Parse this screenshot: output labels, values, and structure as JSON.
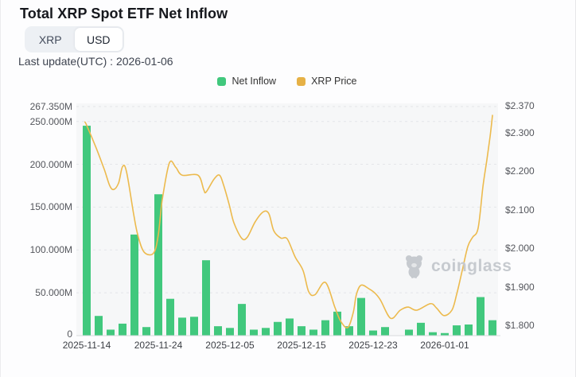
{
  "header": {
    "title": "Total XRP Spot ETF Net Inflow",
    "currency_toggle": {
      "options": [
        "XRP",
        "USD"
      ],
      "selected": "USD"
    },
    "last_update": "Last update(UTC) : 2026-01-06"
  },
  "legend": {
    "items": [
      {
        "label": "Net Inflow",
        "color": "#41c87d"
      },
      {
        "label": "XRP Price",
        "color": "#e6b146"
      }
    ]
  },
  "watermark": {
    "icon": "coinglass-bear-logo",
    "text": "coinglass"
  },
  "colors": {
    "bar": "#41c87d",
    "line": "#ecba4d",
    "plot_background": "#f6f7f8",
    "gridline": "#e4e6e9",
    "axis_line": "#d8dadd"
  },
  "chart_data": {
    "type": "bar+line",
    "title": "Total XRP Spot ETF Net Inflow",
    "legend_position": "top-center",
    "grid": "horizontal-dashed",
    "left_axis": {
      "title": "Net Inflow (USD)",
      "max": 267.35,
      "ticks": [
        {
          "value": 267.35,
          "label": "267.350M"
        },
        {
          "value": 250,
          "label": "250.000M"
        },
        {
          "value": 200,
          "label": "200.000M"
        },
        {
          "value": 150,
          "label": "150.000M"
        },
        {
          "value": 100,
          "label": "100.000M"
        },
        {
          "value": 50,
          "label": "50.000M"
        },
        {
          "value": 0,
          "label": "0"
        }
      ]
    },
    "right_axis": {
      "title": "XRP Price (USD)",
      "range": [
        1.774,
        2.37
      ],
      "ticks": [
        {
          "value": 2.37,
          "label": "$2.370"
        },
        {
          "value": 2.3,
          "label": "$2.300"
        },
        {
          "value": 2.2,
          "label": "$2.200"
        },
        {
          "value": 2.1,
          "label": "$2.100"
        },
        {
          "value": 2.0,
          "label": "$2.000"
        },
        {
          "value": 1.9,
          "label": "$1.900"
        },
        {
          "value": 1.8,
          "label": "$1.800"
        }
      ]
    },
    "x_ticks": [
      {
        "bar_index": 1,
        "label": "2025-11-14"
      },
      {
        "bar_index": 7,
        "label": "2025-11-24"
      },
      {
        "bar_index": 13,
        "label": "2025-12-05"
      },
      {
        "bar_index": 19,
        "label": "2025-12-15"
      },
      {
        "bar_index": 25,
        "label": "2025-12-23"
      },
      {
        "bar_index": 31,
        "label": "2026-01-01"
      }
    ],
    "bar_series": {
      "name": "Net Inflow",
      "unit": "millions USD",
      "values": [
        245,
        23,
        7,
        14,
        118,
        10,
        165,
        43,
        21,
        22,
        88,
        11,
        9,
        37,
        7,
        9,
        16,
        20,
        11,
        7,
        18,
        28,
        11,
        44,
        6,
        10,
        0,
        7,
        15,
        4,
        3,
        12,
        13,
        45,
        18
      ]
    },
    "line_series": {
      "name": "XRP Price",
      "unit": "USD",
      "points": [
        [
          0.85,
          2.328
        ],
        [
          1.0,
          2.319
        ],
        [
          1.8,
          2.26
        ],
        [
          2.47,
          2.205
        ],
        [
          2.93,
          2.163
        ],
        [
          3.27,
          2.153
        ],
        [
          3.67,
          2.17
        ],
        [
          4.0,
          2.212
        ],
        [
          4.33,
          2.2
        ],
        [
          4.93,
          2.09
        ],
        [
          5.27,
          2.036
        ],
        [
          5.8,
          1.991
        ],
        [
          6.6,
          1.988
        ],
        [
          7.0,
          2.036
        ],
        [
          7.33,
          2.126
        ],
        [
          7.93,
          2.222
        ],
        [
          8.47,
          2.21
        ],
        [
          9.0,
          2.19
        ],
        [
          10.33,
          2.19
        ],
        [
          10.8,
          2.153
        ],
        [
          11.0,
          2.146
        ],
        [
          11.67,
          2.18
        ],
        [
          12.13,
          2.19
        ],
        [
          12.47,
          2.164
        ],
        [
          12.93,
          2.115
        ],
        [
          13.33,
          2.067
        ],
        [
          14.0,
          2.026
        ],
        [
          14.47,
          2.03
        ],
        [
          15.13,
          2.07
        ],
        [
          15.8,
          2.095
        ],
        [
          16.27,
          2.09
        ],
        [
          16.67,
          2.046
        ],
        [
          17.27,
          2.027
        ],
        [
          17.8,
          2.025
        ],
        [
          18.47,
          1.978
        ],
        [
          19.13,
          1.943
        ],
        [
          19.6,
          1.888
        ],
        [
          20.13,
          1.88
        ],
        [
          21.0,
          1.912
        ],
        [
          21.8,
          1.847
        ],
        [
          22.27,
          1.812
        ],
        [
          22.87,
          1.795
        ],
        [
          23.33,
          1.833
        ],
        [
          23.6,
          1.881
        ],
        [
          24.0,
          1.905
        ],
        [
          24.67,
          1.895
        ],
        [
          25.13,
          1.885
        ],
        [
          25.6,
          1.867
        ],
        [
          26.47,
          1.819
        ],
        [
          27.27,
          1.84
        ],
        [
          27.93,
          1.848
        ],
        [
          28.67,
          1.84
        ],
        [
          29.8,
          1.857
        ],
        [
          30.33,
          1.845
        ],
        [
          30.93,
          1.826
        ],
        [
          31.6,
          1.84
        ],
        [
          32.0,
          1.881
        ],
        [
          32.47,
          1.943
        ],
        [
          32.93,
          2.005
        ],
        [
          33.33,
          2.029
        ],
        [
          33.8,
          2.053
        ],
        [
          34.2,
          2.16
        ],
        [
          34.53,
          2.23
        ],
        [
          34.8,
          2.29
        ],
        [
          35.0,
          2.345
        ]
      ]
    }
  }
}
